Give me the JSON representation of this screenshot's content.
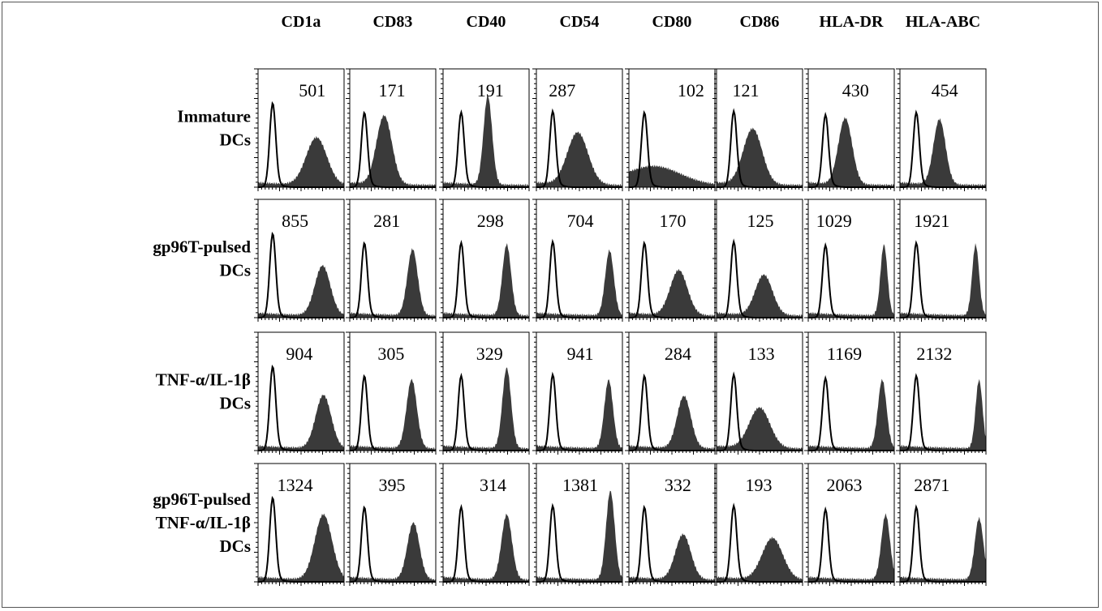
{
  "chart_data": {
    "type": "histogram-grid",
    "columns": [
      "CD1a",
      "CD83",
      "CD40",
      "CD54",
      "CD80",
      "CD86",
      "HLA-DR",
      "HLA-ABC"
    ],
    "rows": [
      {
        "label_lines": [
          "Immature",
          "DCs"
        ],
        "values": [
          501,
          171,
          191,
          287,
          102,
          121,
          430,
          454
        ]
      },
      {
        "label_lines": [
          "gp96T-pulsed",
          "DCs"
        ],
        "values": [
          855,
          281,
          298,
          704,
          170,
          125,
          1029,
          1921
        ]
      },
      {
        "label_lines": [
          "TNF-α/IL-1β",
          "DCs"
        ],
        "values": [
          904,
          305,
          329,
          941,
          284,
          133,
          1169,
          2132
        ]
      },
      {
        "label_lines": [
          "gp96T-pulsed",
          "TNF-α/IL-1β",
          "DCs"
        ],
        "values": [
          1324,
          395,
          314,
          1381,
          332,
          193,
          2063,
          2871
        ]
      }
    ],
    "histograms": {
      "control_line": "#000000",
      "fill_color": "#3a3a3a"
    }
  }
}
